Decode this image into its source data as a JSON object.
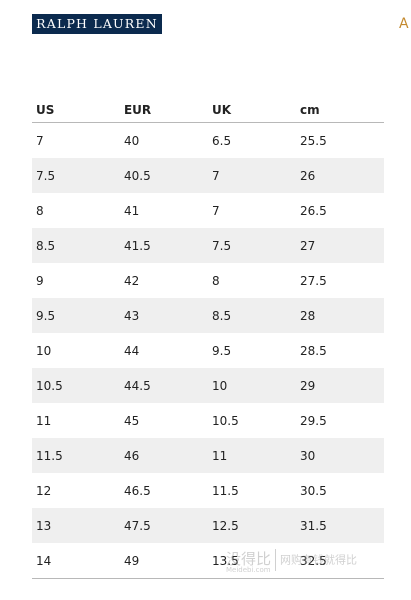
{
  "brand": {
    "logo_text": "RALPH LAUREN",
    "corner_glyph": "A"
  },
  "table": {
    "headers": [
      "US",
      "EUR",
      "UK",
      "cm"
    ],
    "rows": [
      [
        "7",
        "40",
        "6.5",
        "25.5"
      ],
      [
        "7.5",
        "40.5",
        "7",
        "26"
      ],
      [
        "8",
        "41",
        "7",
        "26.5"
      ],
      [
        "8.5",
        "41.5",
        "7.5",
        "27"
      ],
      [
        "9",
        "42",
        "8",
        "27.5"
      ],
      [
        "9.5",
        "43",
        "8.5",
        "28"
      ],
      [
        "10",
        "44",
        "9.5",
        "28.5"
      ],
      [
        "10.5",
        "44.5",
        "10",
        "29"
      ],
      [
        "11",
        "45",
        "10.5",
        "29.5"
      ],
      [
        "11.5",
        "46",
        "11",
        "30"
      ],
      [
        "12",
        "46.5",
        "11.5",
        "30.5"
      ],
      [
        "13",
        "47.5",
        "12.5",
        "31.5"
      ],
      [
        "14",
        "49",
        "13.5",
        "32.5"
      ]
    ]
  },
  "watermark": {
    "main": "没得比",
    "sub": "Meidebi.com",
    "tag": "网购有钱就得比"
  },
  "colors": {
    "logo_bg": "#0b2a4e",
    "stripe": "#efefef",
    "corner_accent": "#c48a2e"
  }
}
